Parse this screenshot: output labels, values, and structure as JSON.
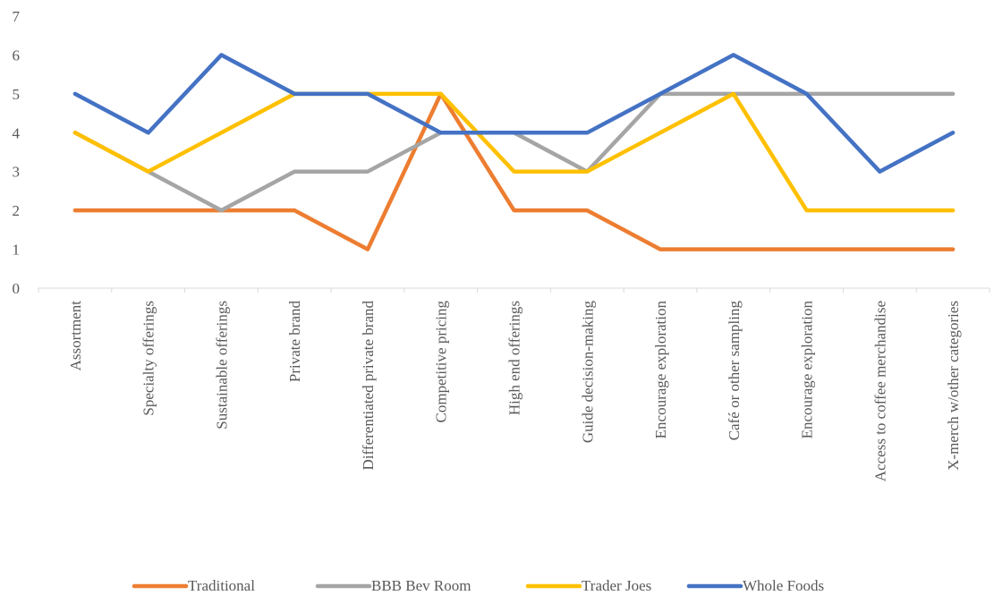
{
  "chart_data": {
    "type": "line",
    "title": "",
    "xlabel": "",
    "ylabel": "",
    "ylim": [
      0,
      7
    ],
    "yticks": [
      0,
      1,
      2,
      3,
      4,
      5,
      6,
      7
    ],
    "grid": false,
    "legend_position": "bottom",
    "categories": [
      "Assortment",
      "Specialty offerings",
      "Sustainable offerings",
      "Private brand",
      "Differentiated private brand",
      "Competitive pricing",
      "High end offerings",
      "Guide decision-making",
      "Encourage exploration",
      "Café or other sampling",
      "Encourage exploration",
      "Access to coffee merchandise",
      "X-merch w/other categories"
    ],
    "series": [
      {
        "name": "Traditional",
        "color": "#ED7D31",
        "values": [
          2,
          2,
          2,
          2,
          1,
          5,
          2,
          2,
          1,
          1,
          1,
          1,
          1
        ]
      },
      {
        "name": "BBB Bev Room",
        "color": "#A5A5A5",
        "values": [
          4,
          3,
          2,
          3,
          3,
          4,
          4,
          3,
          5,
          5,
          5,
          5,
          5
        ]
      },
      {
        "name": "Trader Joes",
        "color": "#FFC000",
        "values": [
          4,
          3,
          4,
          5,
          5,
          5,
          3,
          3,
          4,
          5,
          2,
          2,
          2
        ]
      },
      {
        "name": "Whole Foods",
        "color": "#4472C4",
        "values": [
          5,
          4,
          6,
          5,
          5,
          4,
          4,
          4,
          5,
          6,
          5,
          3,
          4
        ]
      }
    ]
  }
}
